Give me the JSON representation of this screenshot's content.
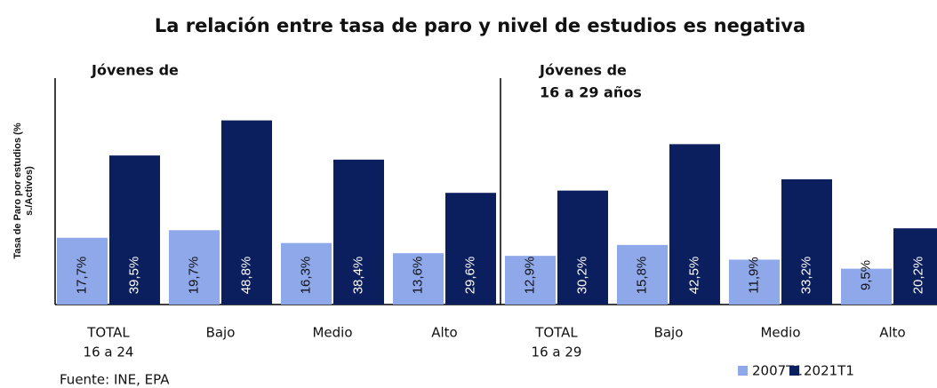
{
  "chart_data": {
    "type": "bar",
    "title": "La relación entre tasa de paro y nivel de estudios es negativa",
    "ylabel": [
      "Tasa de Paro por estudios (%",
      "s./Activos)"
    ],
    "ylim": [
      0,
      60
    ],
    "source": "Fuente: INE, EPA",
    "legend": [
      {
        "name": "2007T1",
        "color": "#8fa8ea"
      },
      {
        "name": "2021T1",
        "color": "#0b1f5e"
      }
    ],
    "panels": [
      {
        "title": [
          "Jóvenes de"
        ],
        "categories": [
          [
            "TOTAL",
            "16 a 24"
          ],
          [
            "Bajo"
          ],
          [
            "Medio"
          ],
          [
            "Alto"
          ]
        ],
        "series": [
          {
            "values": [
              17.7,
              19.7,
              16.3,
              13.6
            ],
            "value_labels": [
              "17,7%",
              "19,7%",
              "16,3%",
              "13,6%"
            ]
          },
          {
            "values": [
              39.5,
              48.8,
              38.4,
              29.6
            ],
            "value_labels": [
              "39,5%",
              "48,8%",
              "38,4%",
              "29,6%"
            ]
          }
        ]
      },
      {
        "title": [
          "Jóvenes de",
          "16 a 29 años"
        ],
        "categories": [
          [
            "TOTAL",
            "16 a 29"
          ],
          [
            "Bajo"
          ],
          [
            "Medio"
          ],
          [
            "Alto"
          ]
        ],
        "series": [
          {
            "values": [
              12.9,
              15.8,
              11.9,
              9.5
            ],
            "value_labels": [
              "12,9%",
              "15,8%",
              "11,9%",
              "9,5%"
            ]
          },
          {
            "values": [
              30.2,
              42.5,
              33.2,
              20.2
            ],
            "value_labels": [
              "30,2%",
              "42,5%",
              "33,2%",
              "20,2%"
            ]
          }
        ]
      }
    ]
  }
}
